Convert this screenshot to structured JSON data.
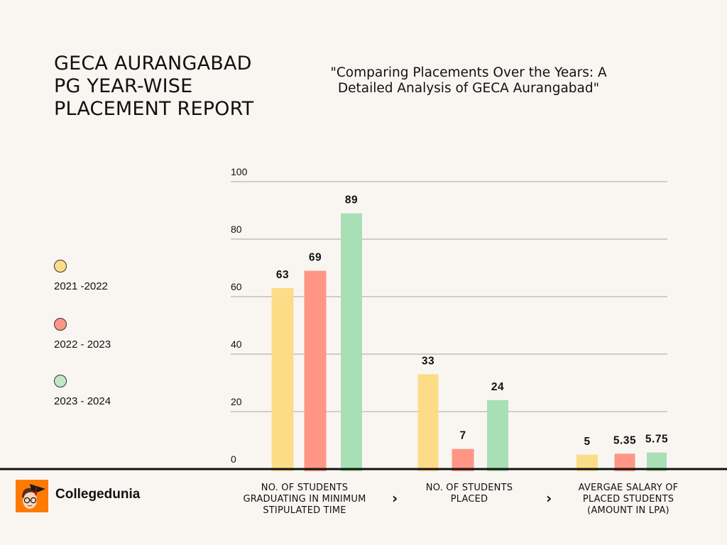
{
  "header": {
    "title_lines": [
      "GECA AURANGABAD",
      "PG YEAR-WISE",
      "PLACEMENT REPORT"
    ],
    "subtitle_lines": [
      "\"Comparing Placements Over the Years: A",
      "Detailed Analysis of GECA Aurangabad\""
    ]
  },
  "brand": {
    "name": "Collegedunia",
    "logo_icon": "student-graduate-cap-icon",
    "logo_color": "#ff7a00"
  },
  "navigation": {
    "chevron_icon": "chevron-right-icon",
    "chevron_glyph": "›"
  },
  "chart_data": {
    "type": "bar",
    "title": "GECA AURANGABAD PG YEAR-WISE PLACEMENT REPORT",
    "subtitle": "\"Comparing Placements Over the Years: A Detailed Analysis of GECA Aurangabad\"",
    "xlabel": "",
    "ylabel": "",
    "ylim": [
      0,
      100
    ],
    "yticks": [
      0,
      20,
      40,
      60,
      80,
      100
    ],
    "ytick_labels": [
      "0",
      "20",
      "40",
      "60",
      "80",
      "100"
    ],
    "grid": true,
    "legend_position": "left",
    "categories": [
      [
        "NO. OF STUDENTS",
        "GRADUATING IN MINIMUM",
        "STIPULATED TIME"
      ],
      [
        "NO. OF STUDENTS",
        "PLACED"
      ],
      [
        "AVERGAE SALARY OF",
        "PLACED STUDENTS",
        "(AMOUNT IN LPA)"
      ]
    ],
    "series": [
      {
        "name": "2021 -2022",
        "color": "#fddc88",
        "values": [
          63,
          33,
          5
        ],
        "labels": [
          "63",
          "33",
          "5"
        ]
      },
      {
        "name": "2022 - 2023",
        "color": "#ff9685",
        "values": [
          69,
          7,
          5.35
        ],
        "labels": [
          "69",
          "7",
          "5.35"
        ]
      },
      {
        "name": "2023 - 2024",
        "color": "#a8dfb4",
        "values": [
          89,
          24,
          5.75
        ],
        "labels": [
          "89",
          "24",
          "5.75"
        ]
      }
    ]
  }
}
